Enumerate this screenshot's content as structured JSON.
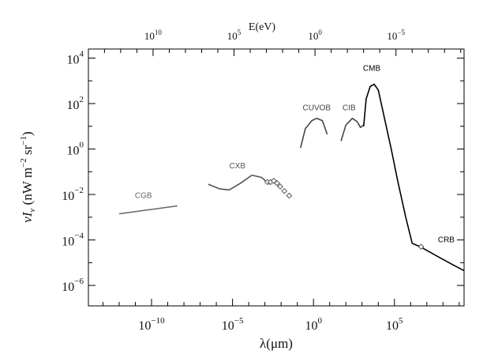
{
  "chart_data": {
    "type": "line",
    "title": "",
    "xlabel": "λ(μm)",
    "ylabel": "νI_ν (nW m^-2 sr^-1)",
    "x_scale": "log",
    "y_scale": "log",
    "x_range_log10": [
      -13.9,
      9.3
    ],
    "y_range_log10": [
      -6.9,
      4.4
    ],
    "grid": false,
    "legend": "none",
    "x_ticks": [
      {
        "base": "10",
        "exp": "−10",
        "log10": -10
      },
      {
        "base": "10",
        "exp": "−5",
        "log10": -5
      },
      {
        "base": "10",
        "exp": "0",
        "log10": 0
      },
      {
        "base": "10",
        "exp": "5",
        "log10": 5
      }
    ],
    "y_ticks": [
      {
        "base": "10",
        "exp": "4",
        "log10": 4
      },
      {
        "base": "10",
        "exp": "2",
        "log10": 2
      },
      {
        "base": "10",
        "exp": "0",
        "log10": 0
      },
      {
        "base": "10",
        "exp": "−2",
        "log10": -2
      },
      {
        "base": "10",
        "exp": "−4",
        "log10": -4
      },
      {
        "base": "10",
        "exp": "−6",
        "log10": -6
      }
    ],
    "top_axis": {
      "label": "E(eV)",
      "ticks": [
        {
          "base": "10",
          "exp": "10",
          "log10_eV": 10
        },
        {
          "base": "10",
          "exp": "5",
          "log10_eV": 5
        },
        {
          "base": "10",
          "exp": "0",
          "log10_eV": 0
        },
        {
          "base": "10",
          "exp": "−5",
          "log10_eV": -5
        }
      ]
    },
    "ylabel_parts": {
      "nu_i": "νI",
      "nu_sub": "ν",
      "units_a": " (nW m",
      "exp_a": "−2",
      "units_b": " sr",
      "exp_b": "−1",
      "units_c": ")"
    },
    "series": [
      {
        "name": "CGB",
        "color": "#666666",
        "points_log10": [
          [
            -12.0,
            -2.85
          ],
          [
            -8.4,
            -2.5
          ]
        ]
      },
      {
        "name": "CXB",
        "color": "#555555",
        "points_log10": [
          [
            -6.5,
            -1.55
          ],
          [
            -5.8,
            -1.75
          ],
          [
            -5.2,
            -1.8
          ],
          [
            -4.5,
            -1.5
          ],
          [
            -3.8,
            -1.15
          ],
          [
            -3.2,
            -1.25
          ],
          [
            -2.7,
            -1.55
          ]
        ]
      },
      {
        "name": "CUVOB",
        "color": "#444444",
        "points_log10": [
          [
            -0.8,
            0.05
          ],
          [
            -0.5,
            0.9
          ],
          [
            -0.1,
            1.25
          ],
          [
            0.2,
            1.35
          ],
          [
            0.55,
            1.25
          ],
          [
            0.85,
            0.65
          ]
        ]
      },
      {
        "name": "CIB",
        "color": "#444444",
        "points_log10": [
          [
            1.7,
            0.35
          ],
          [
            2.0,
            1.05
          ],
          [
            2.4,
            1.35
          ],
          [
            2.7,
            1.2
          ],
          [
            2.9,
            0.95
          ],
          [
            3.1,
            1.05
          ]
        ]
      },
      {
        "name": "CMB",
        "color": "#000000",
        "points_log10": [
          [
            3.1,
            1.0
          ],
          [
            3.25,
            2.2
          ],
          [
            3.5,
            2.75
          ],
          [
            3.75,
            2.85
          ],
          [
            4.0,
            2.6
          ],
          [
            4.4,
            1.3
          ],
          [
            4.8,
            0.0
          ],
          [
            5.2,
            -1.4
          ],
          [
            5.7,
            -3.0
          ],
          [
            6.1,
            -4.15
          ]
        ]
      },
      {
        "name": "CRB",
        "color": "#000000",
        "points_log10": [
          [
            6.1,
            -4.15
          ],
          [
            6.6,
            -4.3
          ],
          [
            7.6,
            -4.7
          ],
          [
            8.5,
            -5.05
          ],
          [
            9.3,
            -5.35
          ]
        ]
      }
    ],
    "markers": [
      {
        "series": "CXB",
        "shape": "diamond",
        "points_log10": [
          [
            -2.85,
            -1.45
          ],
          [
            -2.65,
            -1.45
          ],
          [
            -2.45,
            -1.4
          ],
          [
            -2.25,
            -1.5
          ],
          [
            -2.05,
            -1.65
          ],
          [
            -1.8,
            -1.85
          ],
          [
            -1.5,
            -2.05
          ]
        ]
      },
      {
        "series": "CRB",
        "shape": "diamond",
        "points_log10": [
          [
            6.65,
            -4.3
          ]
        ]
      }
    ],
    "label_positions_log10": [
      {
        "name": "CGB",
        "at": [
          -10.5,
          -2.15
        ]
      },
      {
        "name": "CXB",
        "at": [
          -4.7,
          -0.85
        ]
      },
      {
        "name": "CUVOB",
        "at": [
          0.2,
          1.7
        ]
      },
      {
        "name": "CIB",
        "at": [
          2.2,
          1.7
        ]
      },
      {
        "name": "CMB",
        "at": [
          3.6,
          3.45
        ]
      },
      {
        "name": "CRB",
        "at": [
          8.2,
          -4.1
        ]
      }
    ]
  }
}
